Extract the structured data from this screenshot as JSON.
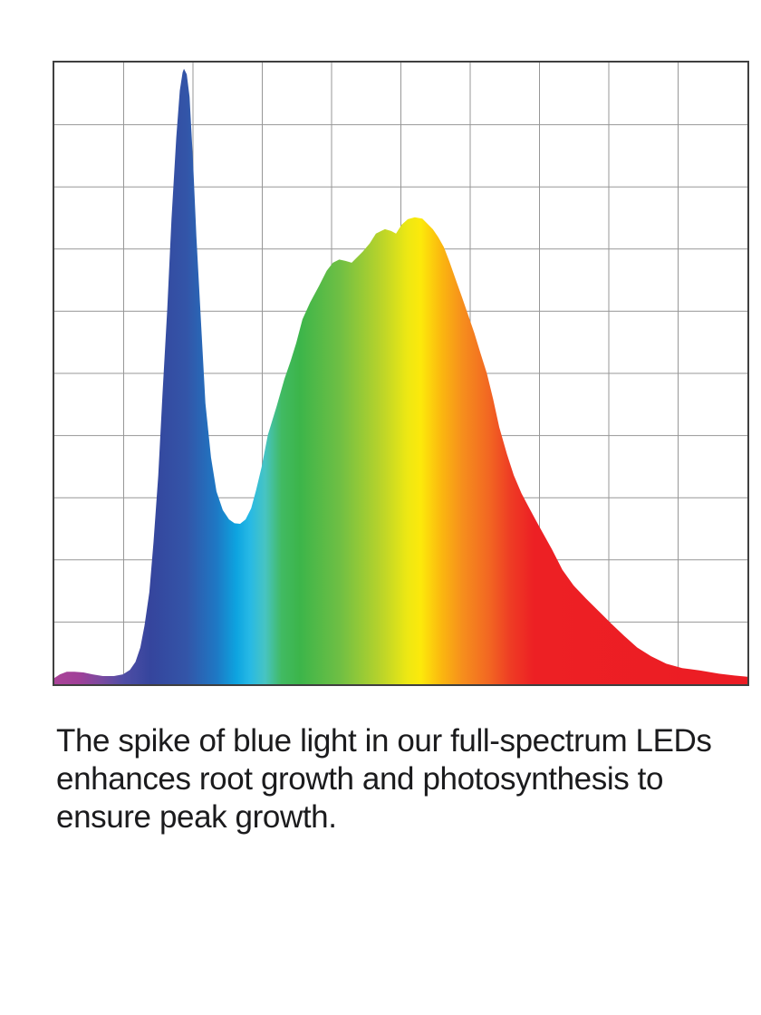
{
  "chart": {
    "background": "#ffffff",
    "border_color": "#3f3f3f",
    "grid_color": "#979797",
    "chart_data": {
      "type": "area",
      "title": "",
      "xlabel": "",
      "ylabel": "",
      "axis_tick_labels_visible": false,
      "grid": {
        "columns": 10,
        "rows": 10,
        "grid_on": true
      },
      "x_range": [
        0,
        1
      ],
      "ylim": [
        0,
        1
      ],
      "series": [
        {
          "name": "led-spectral-intensity",
          "points": [
            [
              0.0,
              0.01
            ],
            [
              0.008,
              0.016
            ],
            [
              0.018,
              0.02
            ],
            [
              0.029,
              0.02
            ],
            [
              0.042,
              0.019
            ],
            [
              0.055,
              0.016
            ],
            [
              0.07,
              0.013
            ],
            [
              0.086,
              0.013
            ],
            [
              0.099,
              0.016
            ],
            [
              0.109,
              0.023
            ],
            [
              0.117,
              0.036
            ],
            [
              0.124,
              0.059
            ],
            [
              0.13,
              0.094
            ],
            [
              0.137,
              0.148
            ],
            [
              0.143,
              0.228
            ],
            [
              0.15,
              0.336
            ],
            [
              0.156,
              0.467
            ],
            [
              0.163,
              0.604
            ],
            [
              0.169,
              0.749
            ],
            [
              0.176,
              0.88
            ],
            [
              0.181,
              0.955
            ],
            [
              0.185,
              0.984
            ],
            [
              0.187,
              0.99
            ],
            [
              0.191,
              0.981
            ],
            [
              0.195,
              0.945
            ],
            [
              0.2,
              0.843
            ],
            [
              0.205,
              0.72
            ],
            [
              0.212,
              0.575
            ],
            [
              0.218,
              0.452
            ],
            [
              0.226,
              0.365
            ],
            [
              0.234,
              0.31
            ],
            [
              0.243,
              0.28
            ],
            [
              0.252,
              0.265
            ],
            [
              0.26,
              0.259
            ],
            [
              0.268,
              0.258
            ],
            [
              0.276,
              0.265
            ],
            [
              0.284,
              0.283
            ],
            [
              0.291,
              0.312
            ],
            [
              0.299,
              0.349
            ],
            [
              0.308,
              0.401
            ],
            [
              0.321,
              0.448
            ],
            [
              0.332,
              0.491
            ],
            [
              0.341,
              0.52
            ],
            [
              0.349,
              0.549
            ],
            [
              0.358,
              0.587
            ],
            [
              0.369,
              0.614
            ],
            [
              0.382,
              0.641
            ],
            [
              0.393,
              0.665
            ],
            [
              0.402,
              0.678
            ],
            [
              0.411,
              0.683
            ],
            [
              0.42,
              0.681
            ],
            [
              0.429,
              0.678
            ],
            [
              0.436,
              0.686
            ],
            [
              0.445,
              0.696
            ],
            [
              0.455,
              0.709
            ],
            [
              0.464,
              0.725
            ],
            [
              0.477,
              0.732
            ],
            [
              0.486,
              0.729
            ],
            [
              0.493,
              0.725
            ],
            [
              0.501,
              0.739
            ],
            [
              0.51,
              0.748
            ],
            [
              0.52,
              0.751
            ],
            [
              0.531,
              0.749
            ],
            [
              0.538,
              0.741
            ],
            [
              0.546,
              0.732
            ],
            [
              0.554,
              0.719
            ],
            [
              0.562,
              0.703
            ],
            [
              0.57,
              0.68
            ],
            [
              0.579,
              0.651
            ],
            [
              0.588,
              0.623
            ],
            [
              0.597,
              0.594
            ],
            [
              0.606,
              0.565
            ],
            [
              0.615,
              0.532
            ],
            [
              0.624,
              0.5
            ],
            [
              0.633,
              0.459
            ],
            [
              0.642,
              0.413
            ],
            [
              0.653,
              0.37
            ],
            [
              0.663,
              0.336
            ],
            [
              0.674,
              0.307
            ],
            [
              0.684,
              0.286
            ],
            [
              0.694,
              0.265
            ],
            [
              0.705,
              0.243
            ],
            [
              0.718,
              0.217
            ],
            [
              0.733,
              0.184
            ],
            [
              0.749,
              0.159
            ],
            [
              0.767,
              0.138
            ],
            [
              0.786,
              0.117
            ],
            [
              0.804,
              0.097
            ],
            [
              0.822,
              0.078
            ],
            [
              0.841,
              0.059
            ],
            [
              0.861,
              0.045
            ],
            [
              0.883,
              0.033
            ],
            [
              0.906,
              0.026
            ],
            [
              0.932,
              0.022
            ],
            [
              0.959,
              0.017
            ],
            [
              0.981,
              0.014
            ],
            [
              1.0,
              0.012
            ]
          ]
        }
      ],
      "annotations": {
        "blue_spike_peak": [
          0.187,
          0.99
        ],
        "valley": [
          0.268,
          0.26
        ],
        "broad_peak": [
          0.52,
          0.75
        ]
      },
      "gradient_stops": [
        [
          0.0,
          "#aa4398"
        ],
        [
          0.035,
          "#a04098"
        ],
        [
          0.068,
          "#7a4aa0"
        ],
        [
          0.1,
          "#4f4da5"
        ],
        [
          0.139,
          "#35459d"
        ],
        [
          0.191,
          "#3355a8"
        ],
        [
          0.234,
          "#1e78c4"
        ],
        [
          0.263,
          "#0da4e0"
        ],
        [
          0.282,
          "#27b9e5"
        ],
        [
          0.304,
          "#47c4c3"
        ],
        [
          0.328,
          "#41ba62"
        ],
        [
          0.354,
          "#3cb54a"
        ],
        [
          0.412,
          "#6fbf44"
        ],
        [
          0.468,
          "#b5d22c"
        ],
        [
          0.51,
          "#eee813"
        ],
        [
          0.529,
          "#fce90b"
        ],
        [
          0.558,
          "#fbb80f"
        ],
        [
          0.59,
          "#f68d1d"
        ],
        [
          0.627,
          "#f26722"
        ],
        [
          0.659,
          "#ee3b24"
        ],
        [
          0.692,
          "#ed2024"
        ],
        [
          1.0,
          "#ec1c24"
        ]
      ]
    }
  },
  "caption": {
    "text_color": "#1b1b1d",
    "lines": [
      "The spike of blue light in our full-spectrum LEDs",
      "enhances root growth and photosynthesis to",
      "ensure peak growth."
    ]
  }
}
